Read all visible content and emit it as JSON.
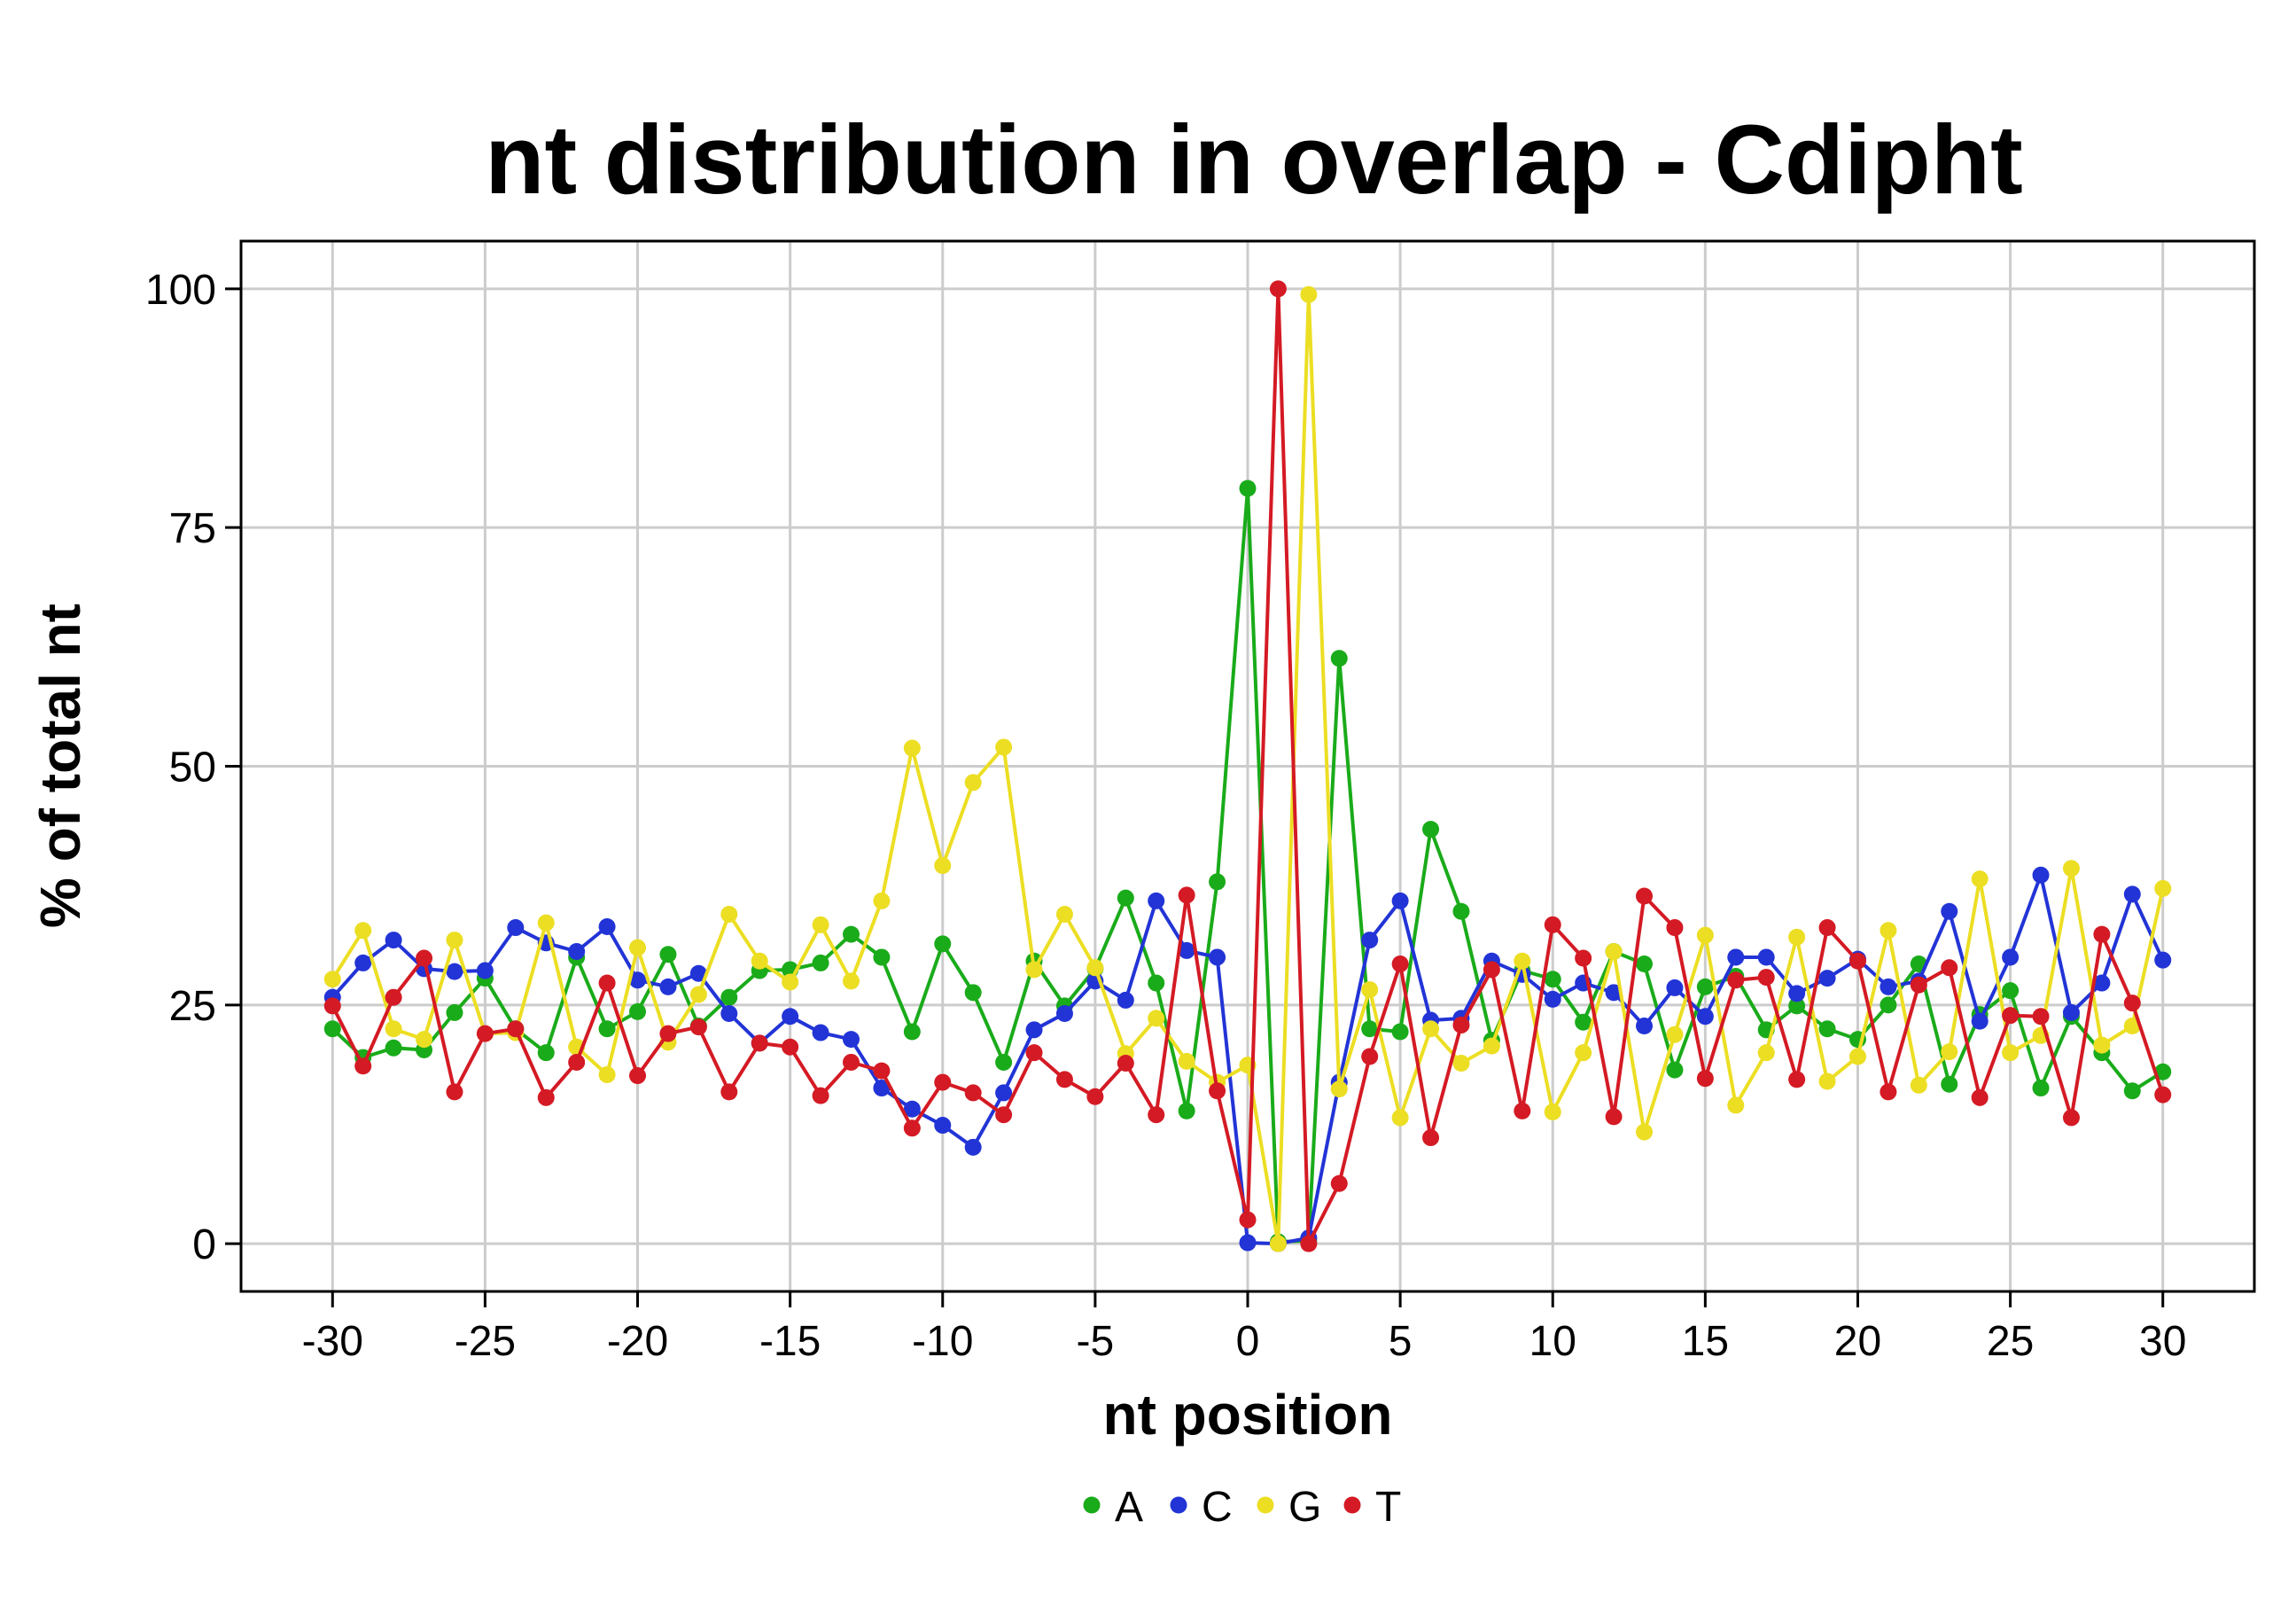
{
  "chart_data": {
    "type": "line",
    "title": "nt distribution in overlap - Cdipht",
    "xlabel": "nt position",
    "ylabel": "% of total nt",
    "xlim": [
      -33,
      33
    ],
    "ylim": [
      -5,
      105
    ],
    "xticks": [
      -30,
      -25,
      -20,
      -15,
      -10,
      -5,
      0,
      5,
      10,
      15,
      20,
      25,
      30
    ],
    "yticks": [
      0,
      25,
      50,
      75,
      100
    ],
    "grid": true,
    "legend_position": "bottom",
    "x": [
      -30,
      -29,
      -28,
      -27,
      -26,
      -25,
      -24,
      -23,
      -22,
      -21,
      -20,
      -19,
      -18,
      -17,
      -16,
      -15,
      -14,
      -13,
      -12,
      -11,
      -10,
      -9,
      -8,
      -7,
      -6,
      -5,
      -4,
      -3,
      -2,
      -1,
      0,
      1,
      2,
      3,
      4,
      5,
      6,
      7,
      8,
      9,
      10,
      11,
      12,
      13,
      14,
      15,
      16,
      17,
      18,
      19,
      20,
      21,
      22,
      23,
      24,
      25,
      26,
      27,
      28,
      29,
      30
    ],
    "series": [
      {
        "name": "A",
        "color": "#1aab1a",
        "values": [
          22.5,
          19.5,
          20.5,
          20.3,
          24.2,
          27.8,
          22.5,
          20.0,
          30.0,
          22.5,
          24.3,
          30.3,
          22.8,
          25.8,
          28.6,
          28.7,
          29.4,
          32.4,
          30.0,
          22.2,
          31.4,
          26.3,
          19.0,
          29.6,
          24.9,
          28.8,
          36.2,
          27.3,
          13.9,
          37.9,
          79.1,
          0.2,
          0.3,
          61.3,
          22.5,
          22.2,
          43.4,
          34.8,
          21.3,
          28.6,
          27.7,
          23.2,
          30.6,
          29.3,
          18.2,
          26.9,
          28.0,
          22.4,
          24.9,
          22.5,
          21.4,
          25.0,
          29.3,
          16.7,
          24.0,
          26.5,
          16.3,
          23.8,
          20.0,
          16.0,
          18.0
        ]
      },
      {
        "name": "C",
        "color": "#2234d6",
        "values": [
          25.8,
          29.4,
          31.8,
          28.8,
          28.5,
          28.6,
          33.1,
          31.5,
          30.6,
          33.2,
          27.6,
          26.9,
          28.3,
          24.1,
          21.0,
          23.8,
          22.1,
          21.4,
          16.3,
          14.1,
          12.4,
          10.1,
          15.8,
          22.4,
          24.1,
          27.5,
          25.5,
          35.9,
          30.7,
          30.0,
          0.1,
          0.0,
          0.6,
          16.9,
          31.8,
          35.9,
          23.4,
          23.6,
          29.6,
          28.2,
          25.6,
          27.3,
          26.3,
          22.8,
          26.8,
          23.8,
          30.0,
          30.0,
          26.2,
          27.8,
          29.8,
          26.9,
          27.5,
          34.8,
          23.3,
          30.0,
          38.6,
          24.2,
          27.3,
          36.6,
          29.7
        ]
      },
      {
        "name": "G",
        "color": "#ecde23",
        "values": [
          27.7,
          32.8,
          22.5,
          21.4,
          31.8,
          22.0,
          22.1,
          33.6,
          20.6,
          17.7,
          31.0,
          21.1,
          26.1,
          34.5,
          29.6,
          27.4,
          33.4,
          27.5,
          35.9,
          51.9,
          39.6,
          48.3,
          52.0,
          28.7,
          34.5,
          28.9,
          19.9,
          23.6,
          19.1,
          16.9,
          18.7,
          0.0,
          99.4,
          16.2,
          26.6,
          13.2,
          22.5,
          18.9,
          20.7,
          29.6,
          13.8,
          20.0,
          30.6,
          11.7,
          21.9,
          32.3,
          14.5,
          20.0,
          32.1,
          17.0,
          19.6,
          32.8,
          16.6,
          20.1,
          38.2,
          20.0,
          21.8,
          39.3,
          20.8,
          22.8,
          37.2
        ]
      },
      {
        "name": "T",
        "color": "#d41a24",
        "values": [
          24.9,
          18.6,
          25.8,
          29.9,
          15.9,
          22.0,
          22.5,
          15.3,
          19.0,
          27.3,
          17.6,
          22.0,
          22.7,
          15.9,
          21.0,
          20.6,
          15.5,
          19.0,
          18.1,
          12.1,
          16.9,
          15.8,
          13.5,
          20.0,
          17.2,
          15.4,
          18.9,
          13.5,
          36.5,
          16.0,
          2.5,
          100.0,
          0.0,
          6.3,
          19.6,
          29.3,
          11.1,
          22.9,
          28.7,
          13.9,
          33.4,
          29.9,
          13.3,
          36.4,
          33.1,
          17.3,
          27.6,
          27.9,
          17.2,
          33.1,
          29.6,
          15.9,
          27.1,
          28.9,
          15.3,
          23.9,
          23.8,
          13.2,
          32.4,
          25.2,
          15.6
        ]
      }
    ]
  }
}
